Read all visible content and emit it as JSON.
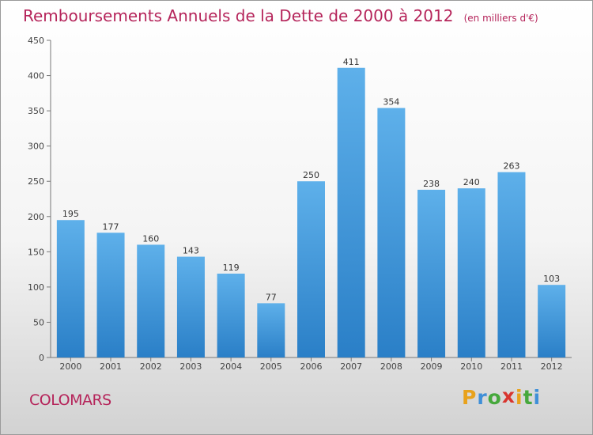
{
  "chart_data": {
    "type": "bar",
    "title": "Remboursements Annuels de la Dette de 2000 à 2012",
    "unit_note": "(en milliers d'€)",
    "categories": [
      "2000",
      "2001",
      "2002",
      "2003",
      "2004",
      "2005",
      "2006",
      "2007",
      "2008",
      "2009",
      "2010",
      "2011",
      "2012"
    ],
    "values": [
      195,
      177,
      160,
      143,
      119,
      77,
      250,
      411,
      354,
      238,
      240,
      263,
      103
    ],
    "ylim": [
      0,
      450
    ],
    "yticks": [
      0,
      50,
      100,
      150,
      200,
      250,
      300,
      350,
      400,
      450
    ],
    "grid": false,
    "legend": "none",
    "bar_color_top": "#5eb0ea",
    "bar_color_bottom": "#2a7fc7"
  },
  "commune": "COLOMARS",
  "logo": {
    "letters": [
      "P",
      "r",
      "o",
      "x",
      "i",
      "t",
      "i"
    ],
    "colors": [
      "#e8a21c",
      "#3f8fd8",
      "#46a83c",
      "#d8352e",
      "#e8a21c",
      "#46a83c",
      "#3f8fd8"
    ]
  }
}
